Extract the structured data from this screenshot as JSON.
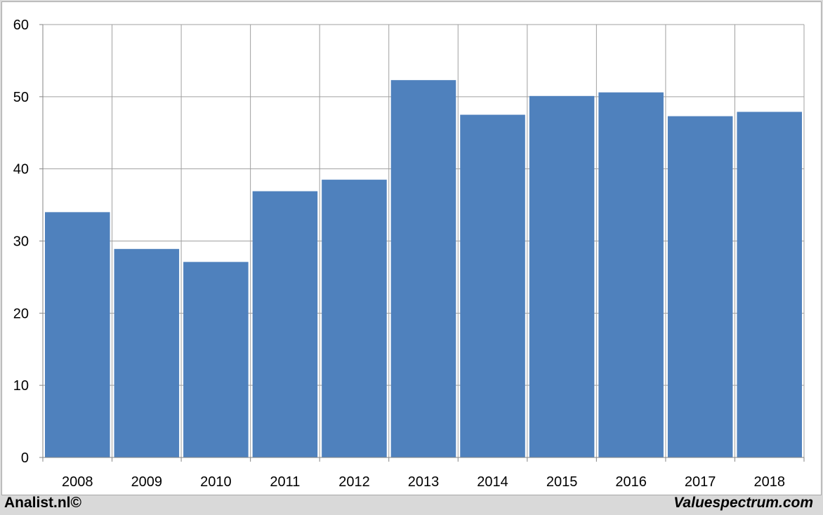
{
  "footer": {
    "left": "Analist.nl©",
    "right": "Valuespectrum.com"
  },
  "colors": {
    "bar": "#4f81bd",
    "grid": "#a0a0a0",
    "axis": "#868686"
  },
  "chart_data": {
    "type": "bar",
    "categories": [
      "2008",
      "2009",
      "2010",
      "2011",
      "2012",
      "2013",
      "2014",
      "2015",
      "2016",
      "2017",
      "2018"
    ],
    "values": [
      34.0,
      28.9,
      27.1,
      36.9,
      38.5,
      52.3,
      47.5,
      50.1,
      50.6,
      47.3,
      47.9
    ],
    "ylim": [
      0,
      60
    ],
    "yticks": [
      0,
      10,
      20,
      30,
      40,
      50,
      60
    ],
    "grid": true,
    "title": "",
    "xlabel": "",
    "ylabel": ""
  }
}
